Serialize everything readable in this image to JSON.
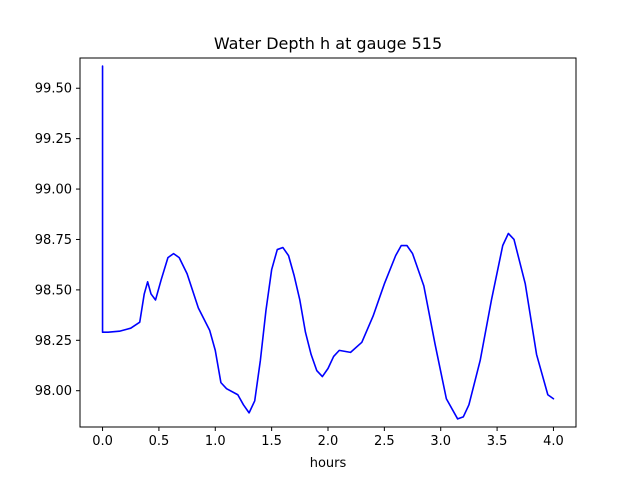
{
  "chart_data": {
    "type": "line",
    "title": "Water Depth h at gauge 515",
    "xlabel": "hours",
    "ylabel": "",
    "xlim": [
      -0.2,
      4.2
    ],
    "ylim": [
      97.82,
      99.65
    ],
    "xticks": [
      0.0,
      0.5,
      1.0,
      1.5,
      2.0,
      2.5,
      3.0,
      3.5,
      4.0
    ],
    "xtick_labels": [
      "0.0",
      "0.5",
      "1.0",
      "1.5",
      "2.0",
      "2.5",
      "3.0",
      "3.5",
      "4.0"
    ],
    "yticks": [
      98.0,
      98.25,
      98.5,
      98.75,
      99.0,
      99.25,
      99.5
    ],
    "ytick_labels": [
      "98.00",
      "98.25",
      "98.50",
      "98.75",
      "99.00",
      "99.25",
      "99.50"
    ],
    "grid": false,
    "line_color": "#0000ff",
    "series": [
      {
        "x": [
          0.0,
          0.0,
          0.05,
          0.15,
          0.25,
          0.33,
          0.37,
          0.4,
          0.43,
          0.47,
          0.52,
          0.58,
          0.63,
          0.68,
          0.75,
          0.85,
          0.95,
          1.0,
          1.05,
          1.1,
          1.2,
          1.25,
          1.3,
          1.35,
          1.4,
          1.45,
          1.5,
          1.55,
          1.6,
          1.65,
          1.7,
          1.75,
          1.8,
          1.85,
          1.9,
          1.95,
          2.0,
          2.05,
          2.1,
          2.2,
          2.3,
          2.4,
          2.5,
          2.6,
          2.65,
          2.7,
          2.75,
          2.85,
          2.95,
          3.05,
          3.15,
          3.2,
          3.25,
          3.35,
          3.45,
          3.55,
          3.6,
          3.65,
          3.75,
          3.85,
          3.95,
          4.0
        ],
        "y": [
          99.61,
          98.29,
          98.29,
          98.295,
          98.31,
          98.34,
          98.48,
          98.54,
          98.48,
          98.45,
          98.55,
          98.66,
          98.68,
          98.66,
          98.58,
          98.41,
          98.3,
          98.2,
          98.04,
          98.01,
          97.98,
          97.93,
          97.89,
          97.95,
          98.15,
          98.4,
          98.6,
          98.7,
          98.71,
          98.67,
          98.57,
          98.45,
          98.29,
          98.18,
          98.1,
          98.07,
          98.11,
          98.17,
          98.2,
          98.19,
          98.24,
          98.37,
          98.53,
          98.67,
          98.72,
          98.72,
          98.68,
          98.52,
          98.23,
          97.96,
          97.86,
          97.87,
          97.93,
          98.15,
          98.45,
          98.72,
          98.78,
          98.75,
          98.53,
          98.18,
          97.98,
          97.96
        ]
      }
    ]
  }
}
